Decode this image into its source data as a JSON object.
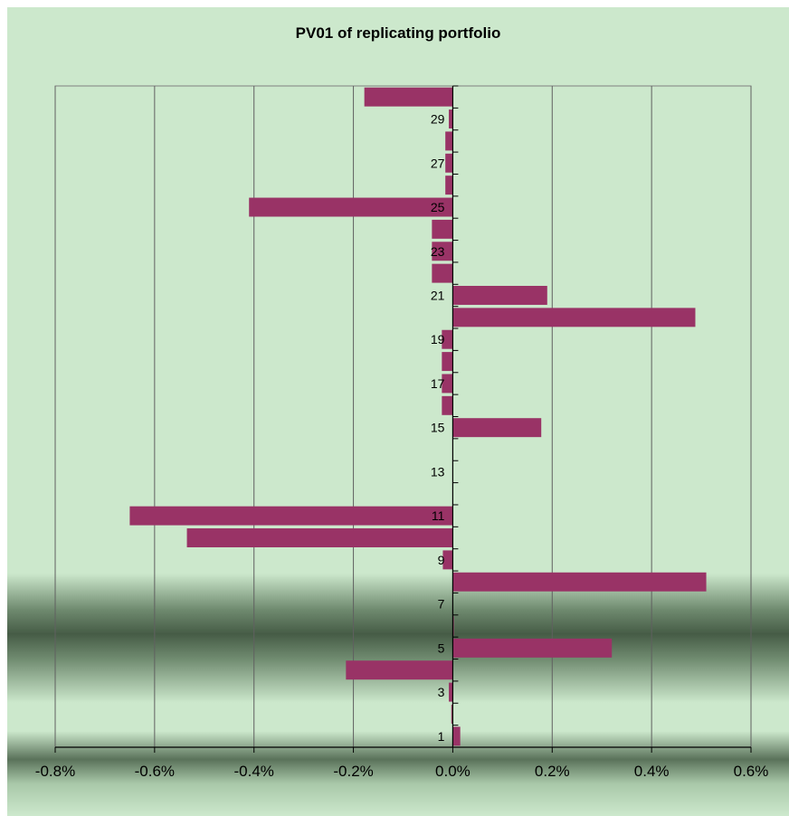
{
  "chart_data": {
    "type": "bar",
    "orientation": "horizontal",
    "title": "PV01 of replicating portfolio",
    "xlabel": "",
    "ylabel": "",
    "xlim": [
      -0.8,
      0.6
    ],
    "x_ticks": [
      -0.8,
      -0.6,
      -0.4,
      -0.2,
      0.0,
      0.2,
      0.4,
      0.6
    ],
    "x_tick_labels": [
      "-0.8%",
      "-0.6%",
      "-0.4%",
      "-0.2%",
      "0.0%",
      "0.2%",
      "0.4%",
      "0.6%"
    ],
    "y_tick_labels": [
      "1",
      "3",
      "5",
      "7",
      "9",
      "11",
      "13",
      "15",
      "17",
      "19",
      "21",
      "23",
      "25",
      "27",
      "29"
    ],
    "grid": "vertical",
    "legend": "none",
    "categories": [
      "1",
      "2",
      "3",
      "4",
      "5",
      "6",
      "7",
      "8",
      "9",
      "10",
      "11",
      "12",
      "13",
      "14",
      "15",
      "16",
      "17",
      "18",
      "19",
      "20",
      "21",
      "22",
      "23",
      "24",
      "25",
      "26",
      "27",
      "28",
      "29",
      "30"
    ],
    "values": [
      0.015,
      -0.003,
      -0.008,
      -0.215,
      0.32,
      0.002,
      0.0,
      0.51,
      -0.02,
      -0.535,
      -0.65,
      0.0,
      0.0,
      0.0,
      0.178,
      -0.022,
      -0.022,
      -0.022,
      -0.022,
      0.488,
      0.19,
      -0.042,
      -0.042,
      -0.042,
      -0.41,
      -0.015,
      -0.015,
      -0.015,
      -0.008,
      -0.178
    ],
    "bar_color": "#993366",
    "background_color": "#cce8cc"
  }
}
